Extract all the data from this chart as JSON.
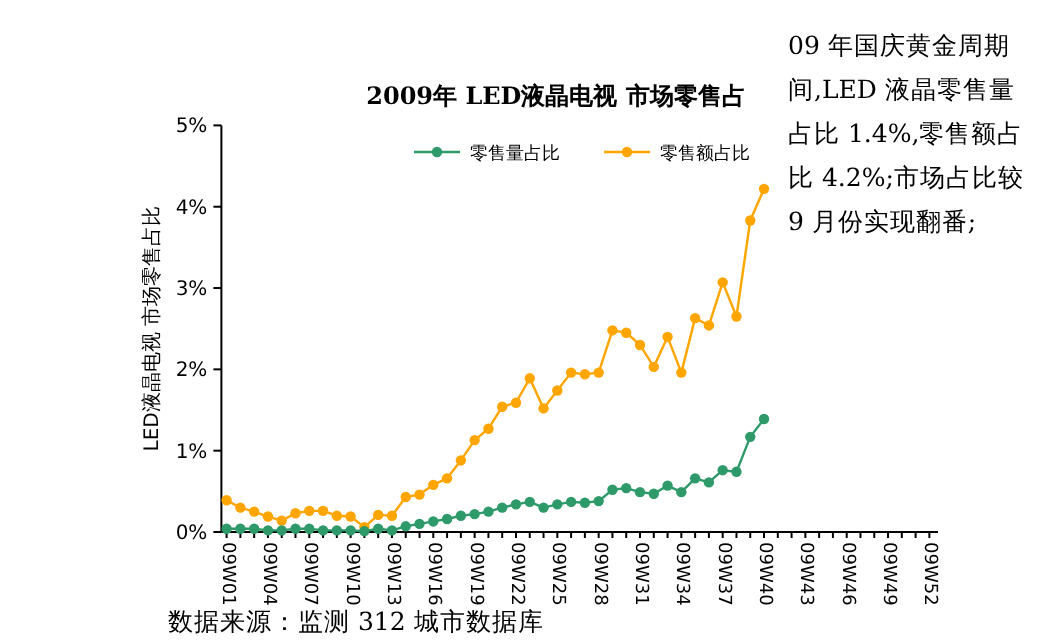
{
  "chart_data": {
    "type": "line",
    "title": "2009年 LED液晶电视 市场零售占",
    "ylabel": "LED液晶电视 市场零售占比",
    "categories": [
      "09W01",
      null,
      null,
      "09W04",
      null,
      null,
      "09W07",
      null,
      null,
      "09W10",
      null,
      null,
      "09W13",
      null,
      null,
      "09W16",
      null,
      null,
      "09W19",
      null,
      null,
      "09W22",
      null,
      null,
      "09W25",
      null,
      null,
      "09W28",
      null,
      null,
      "09W31",
      null,
      null,
      "09W34",
      null,
      null,
      "09W37",
      null,
      null,
      "09W40",
      null,
      null,
      "09W43",
      null,
      null,
      "09W46",
      null,
      null,
      "09W49",
      null,
      null,
      "09W52"
    ],
    "series": [
      {
        "name": "零售量占比",
        "color": "#2e9a6a",
        "values": [
          0.04,
          0.04,
          0.04,
          0.02,
          0.02,
          0.04,
          0.04,
          0.02,
          0.02,
          0.02,
          0.01,
          0.04,
          0.02,
          0.07,
          0.1,
          0.13,
          0.16,
          0.2,
          0.22,
          0.25,
          0.3,
          0.34,
          0.37,
          0.3,
          0.34,
          0.37,
          0.36,
          0.38,
          0.52,
          0.54,
          0.49,
          0.47,
          0.57,
          0.49,
          0.66,
          0.61,
          0.76,
          0.74,
          1.17,
          1.39,
          null,
          null,
          null,
          null,
          null,
          null,
          null,
          null,
          null,
          null,
          null,
          null
        ]
      },
      {
        "name": "零售额占比",
        "color": "#ffa500",
        "values": [
          0.39,
          0.3,
          0.25,
          0.19,
          0.14,
          0.23,
          0.26,
          0.26,
          0.2,
          0.19,
          0.06,
          0.21,
          0.2,
          0.43,
          0.46,
          0.58,
          0.66,
          0.88,
          1.13,
          1.27,
          1.54,
          1.59,
          1.89,
          1.52,
          1.74,
          1.96,
          1.94,
          1.96,
          2.48,
          2.45,
          2.3,
          2.03,
          2.4,
          1.96,
          2.63,
          2.54,
          3.07,
          2.65,
          3.83,
          4.22,
          null,
          null,
          null,
          null,
          null,
          null,
          null,
          null,
          null,
          null,
          null,
          null
        ]
      }
    ],
    "ylim": [
      0,
      5
    ],
    "yticks": [
      {
        "value": 0,
        "label": "0%"
      },
      {
        "value": 1,
        "label": "1%"
      },
      {
        "value": 2,
        "label": "2%"
      },
      {
        "value": 3,
        "label": "3%"
      },
      {
        "value": 4,
        "label": "4%"
      },
      {
        "value": 5,
        "label": "5%"
      }
    ],
    "grid": false,
    "legend": "top",
    "marker": "circle",
    "line_style": "solid",
    "annotations": [
      "09 年国庆黄金周期间,LED 液晶零售量占比 1.4%,零售额占比 4.2%;市场占比较 9 月份实现翻番;",
      "数据来源：监测 312 城市数据库"
    ]
  }
}
